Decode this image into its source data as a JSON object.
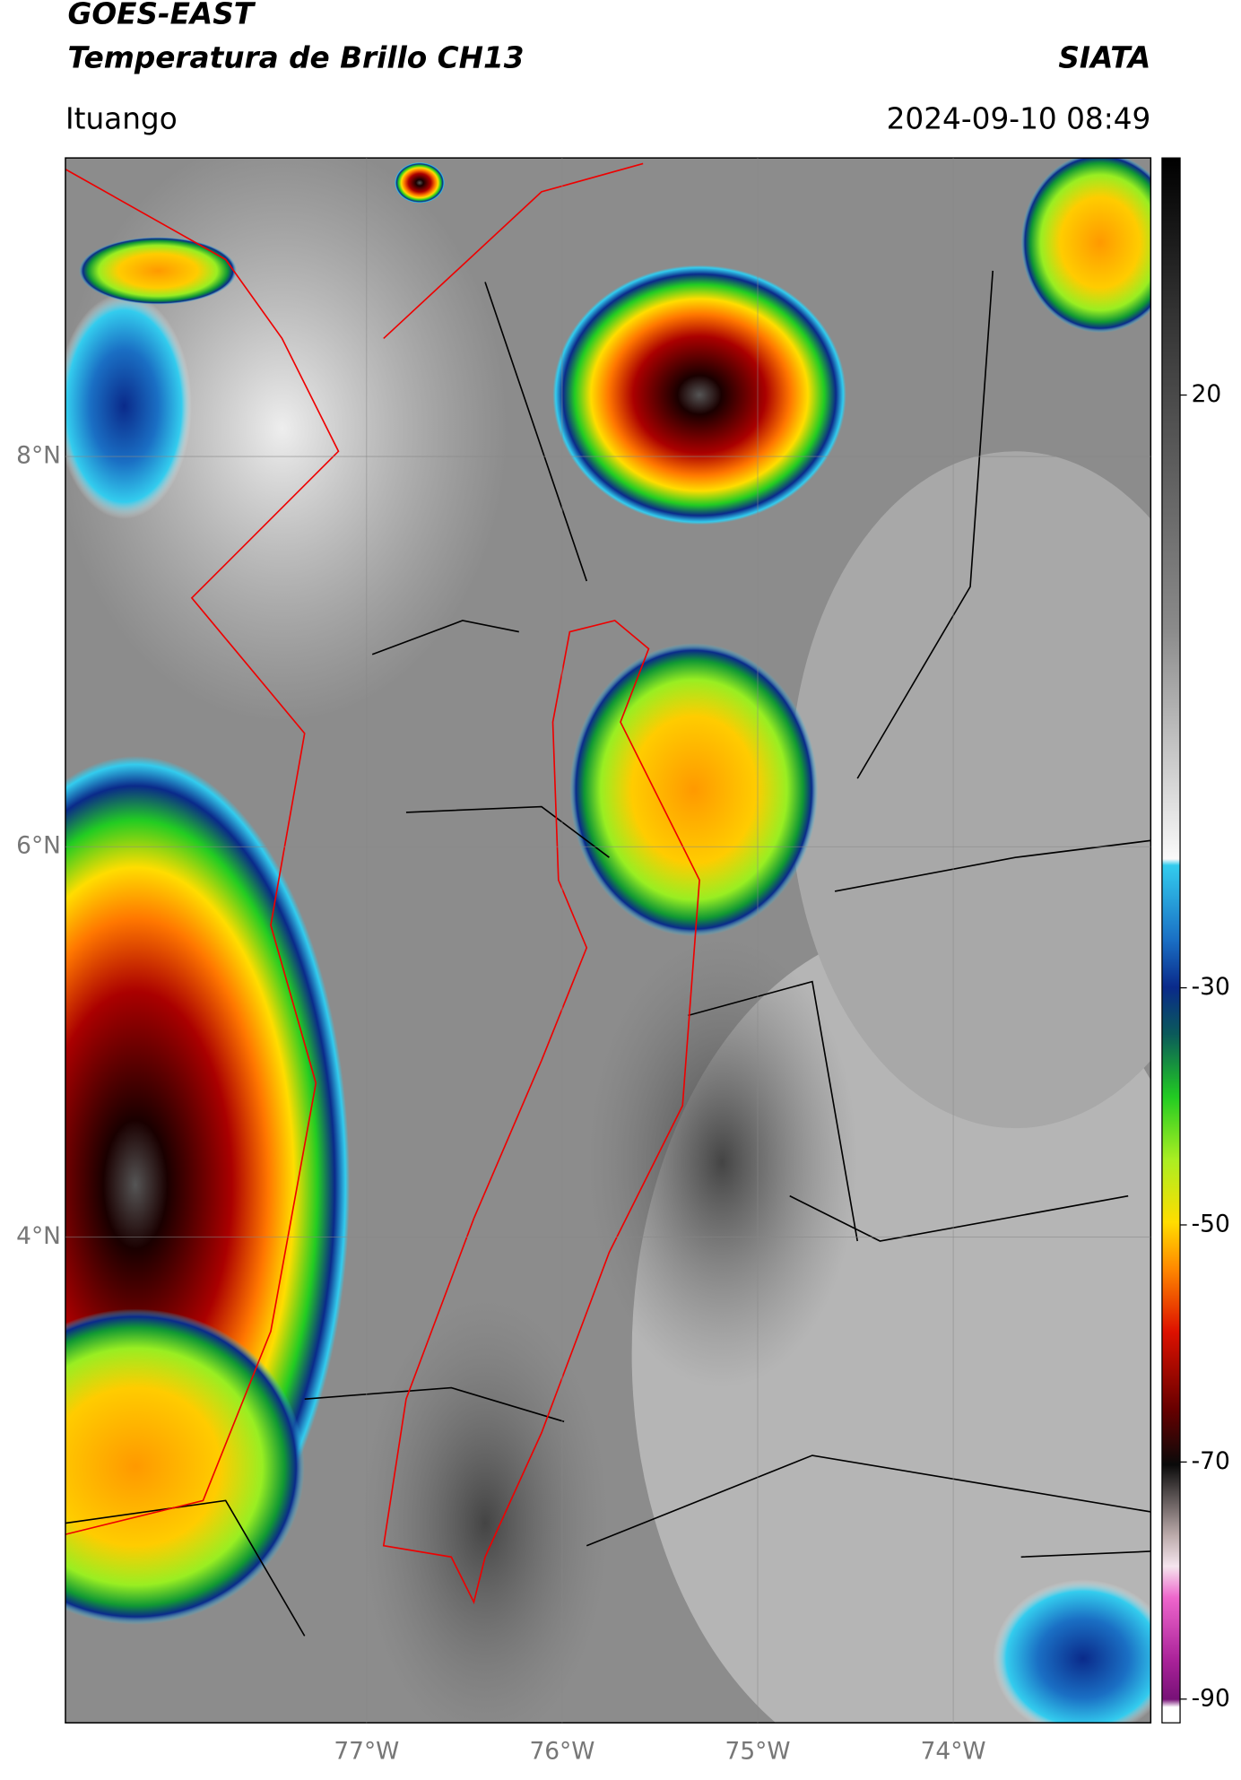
{
  "header": {
    "satellite": "GOES-EAST",
    "product": "Temperatura de Brillo CH13",
    "agency": "SIATA",
    "region": "Ituango",
    "timestamp": "2024-09-10 08:49"
  },
  "map": {
    "latlim": [
      1.51,
      9.53
    ],
    "lonlim": [
      -78.54,
      -72.99
    ],
    "latticks": [
      {
        "value": 8,
        "label": "8°N"
      },
      {
        "value": 6,
        "label": "6°N"
      },
      {
        "value": 4,
        "label": "4°N"
      }
    ],
    "lonticks": [
      {
        "value": -77,
        "label": "77°W"
      },
      {
        "value": -76,
        "label": "76°W"
      },
      {
        "value": -75,
        "label": "75°W"
      },
      {
        "value": -74,
        "label": "74°W"
      }
    ],
    "grid": true
  },
  "colorbar": {
    "lim": [
      -92,
      40
    ],
    "ticks": [
      20,
      -30,
      -50,
      -70,
      -90
    ]
  }
}
